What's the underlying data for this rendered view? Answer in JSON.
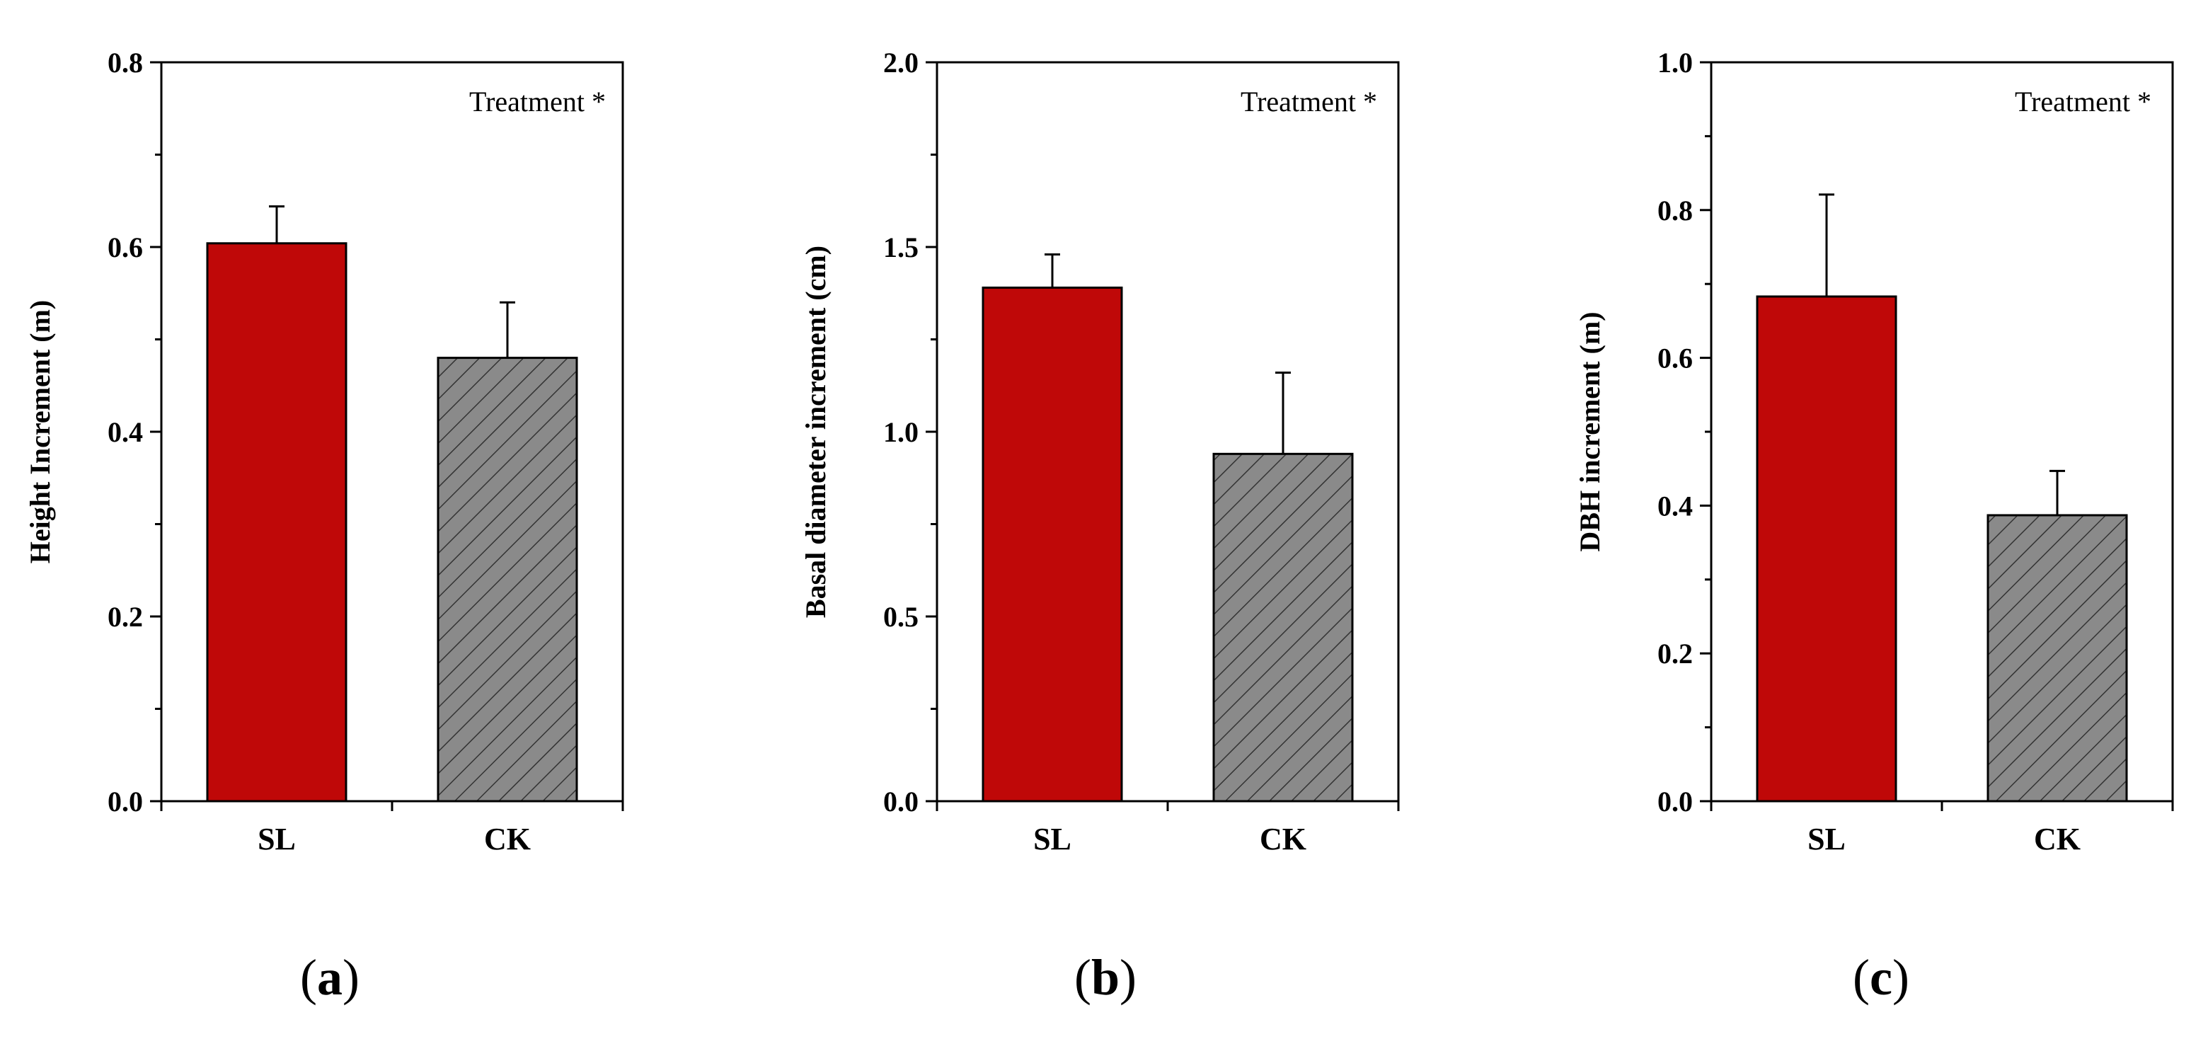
{
  "chart_data": [
    {
      "type": "bar",
      "panel_label": "a",
      "categories": [
        "SL",
        "CK"
      ],
      "values": [
        0.604,
        0.48
      ],
      "errors": [
        0.04,
        0.06
      ],
      "ylabel": "Height Increment (m)",
      "ylim": [
        0,
        0.8
      ],
      "yticks": [
        0.0,
        0.2,
        0.4,
        0.6,
        0.8
      ],
      "ytick_labels": [
        "0.0",
        "0.2",
        "0.4",
        "0.6",
        "0.8"
      ],
      "annotation": "Treatment *",
      "bar_colors": [
        "#bf0808",
        "#8a8a8a"
      ],
      "hatched": [
        false,
        true
      ]
    },
    {
      "type": "bar",
      "panel_label": "b",
      "categories": [
        "SL",
        "CK"
      ],
      "values": [
        1.39,
        0.94
      ],
      "errors": [
        0.09,
        0.22
      ],
      "ylabel": "Basal diameter increment (cm)",
      "ylim": [
        0,
        2.0
      ],
      "yticks": [
        0.0,
        0.5,
        1.0,
        1.5,
        2.0
      ],
      "ytick_labels": [
        "0.0",
        "0.5",
        "1.0",
        "1.5",
        "2.0"
      ],
      "annotation": "Treatment *",
      "bar_colors": [
        "#bf0808",
        "#8a8a8a"
      ],
      "hatched": [
        false,
        true
      ]
    },
    {
      "type": "bar",
      "panel_label": "c",
      "categories": [
        "SL",
        "CK"
      ],
      "values": [
        0.683,
        0.387
      ],
      "errors": [
        0.138,
        0.06
      ],
      "ylabel": "DBH increment (m)",
      "ylim": [
        0,
        1.0
      ],
      "yticks": [
        0.0,
        0.2,
        0.4,
        0.6,
        0.8,
        1.0
      ],
      "ytick_labels": [
        "0.0",
        "0.2",
        "0.4",
        "0.6",
        "0.8",
        "1.0"
      ],
      "annotation": "Treatment *",
      "bar_colors": [
        "#bf0808",
        "#8a8a8a"
      ],
      "hatched": [
        false,
        true
      ]
    }
  ]
}
